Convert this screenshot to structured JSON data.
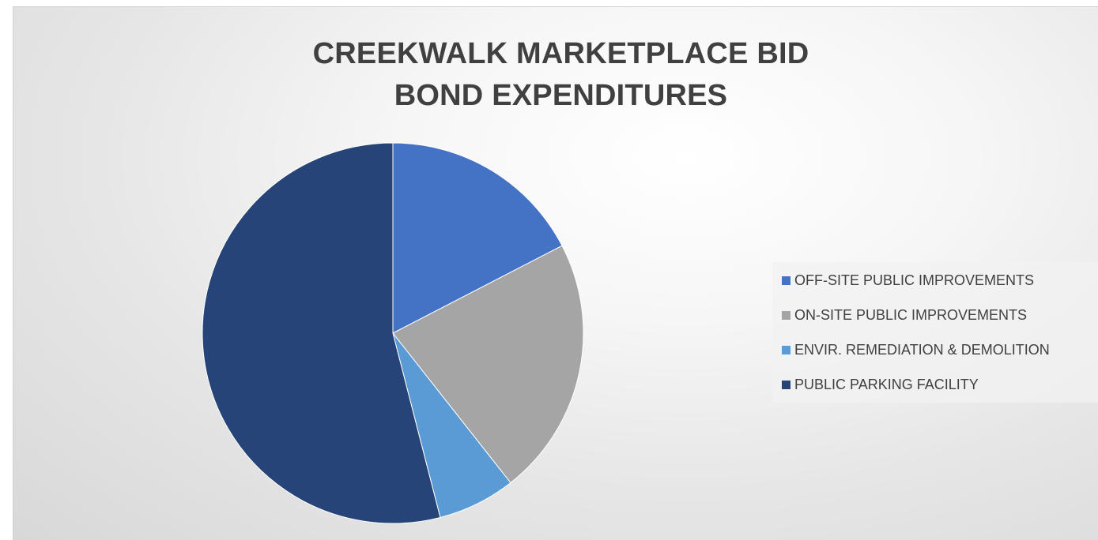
{
  "chart_data": {
    "type": "pie",
    "title_lines": [
      "CREEKWALK MARKETPLACE BID",
      "BOND EXPENDITURES"
    ],
    "start_angle_deg": 0,
    "slices": [
      {
        "label": "OFF-SITE PUBLIC IMPROVEMENTS",
        "value": 17.4,
        "color": "#4472c4"
      },
      {
        "label": "ON-SITE PUBLIC IMPROVEMENTS",
        "value": 22.0,
        "color": "#a5a5a5"
      },
      {
        "label": "ENVIR. REMEDIATION & DEMOLITION",
        "value": 6.6,
        "color": "#5b9bd5"
      },
      {
        "label": "PUBLIC PARKING FACILITY",
        "value": 54.0,
        "color": "#264478"
      }
    ],
    "legend_position": "right"
  }
}
